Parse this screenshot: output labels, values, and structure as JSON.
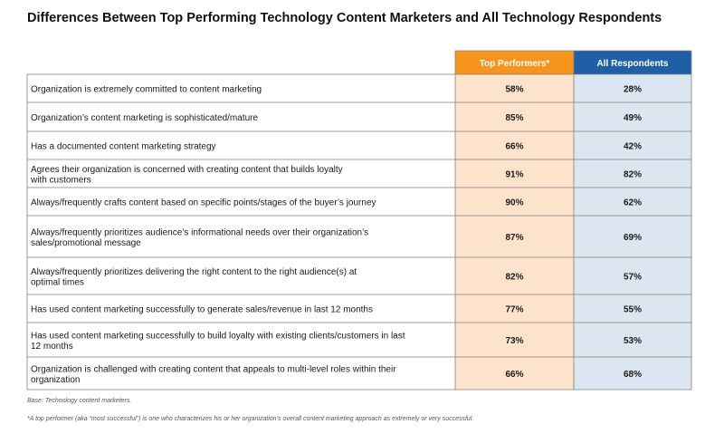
{
  "title": "Differences Between Top Performing Technology Content Marketers and All Technology Respondents",
  "columns": [
    "Top Performers*",
    "All Respondents"
  ],
  "colors": {
    "top_header": "#f7941d",
    "all_header": "#1f5fa6",
    "top_cell": "#fde3cc",
    "all_cell": "#dbe6f1",
    "border": "#7f7f7f"
  },
  "chart_data": {
    "type": "table",
    "title": "Differences Between Top Performing Technology Content Marketers and All Technology Respondents",
    "columns": [
      "Top Performers*",
      "All Respondents"
    ],
    "rows": [
      {
        "label": [
          "Organization is extremely committed to content marketing"
        ],
        "values": [
          "58%",
          "28%"
        ]
      },
      {
        "label": [
          "Organization’s content marketing is sophisticated/mature"
        ],
        "values": [
          "85%",
          "49%"
        ]
      },
      {
        "label": [
          "Has a documented content marketing strategy"
        ],
        "values": [
          "66%",
          "42%"
        ]
      },
      {
        "label": [
          "Agrees their organization is concerned with creating content that builds loyalty",
          "with customers"
        ],
        "values": [
          "91%",
          "82%"
        ]
      },
      {
        "label": [
          "Always/frequently crafts content based on specific points/stages of the buyer’s journey"
        ],
        "values": [
          "90%",
          "62%"
        ]
      },
      {
        "label": [
          "Always/frequently prioritizes audience’s informational needs over their organization’s",
          "sales/promotional message"
        ],
        "values": [
          "87%",
          "69%"
        ]
      },
      {
        "label": [
          "Always/frequently prioritizes delivering the right content to the right audience(s) at",
          "optimal times"
        ],
        "values": [
          "82%",
          "57%"
        ]
      },
      {
        "label": [
          "Has used content marketing successfully to generate sales/revenue in last 12 months"
        ],
        "values": [
          "77%",
          "55%"
        ]
      },
      {
        "label": [
          "Has used content marketing successfully to build loyalty with existing clients/customers in last",
          "12 months"
        ],
        "values": [
          "73%",
          "53%"
        ]
      },
      {
        "label": [
          "Organization is challenged with creating content that appeals to multi-level roles within their",
          "organization"
        ],
        "values": [
          "66%",
          "68%"
        ]
      }
    ]
  },
  "notes": {
    "base": "Base: Technology content marketers.",
    "definition": "*A top performer (aka “most successful”) is one who characterizes his or her organization’s overall content marketing approach as extremely or very successful."
  }
}
